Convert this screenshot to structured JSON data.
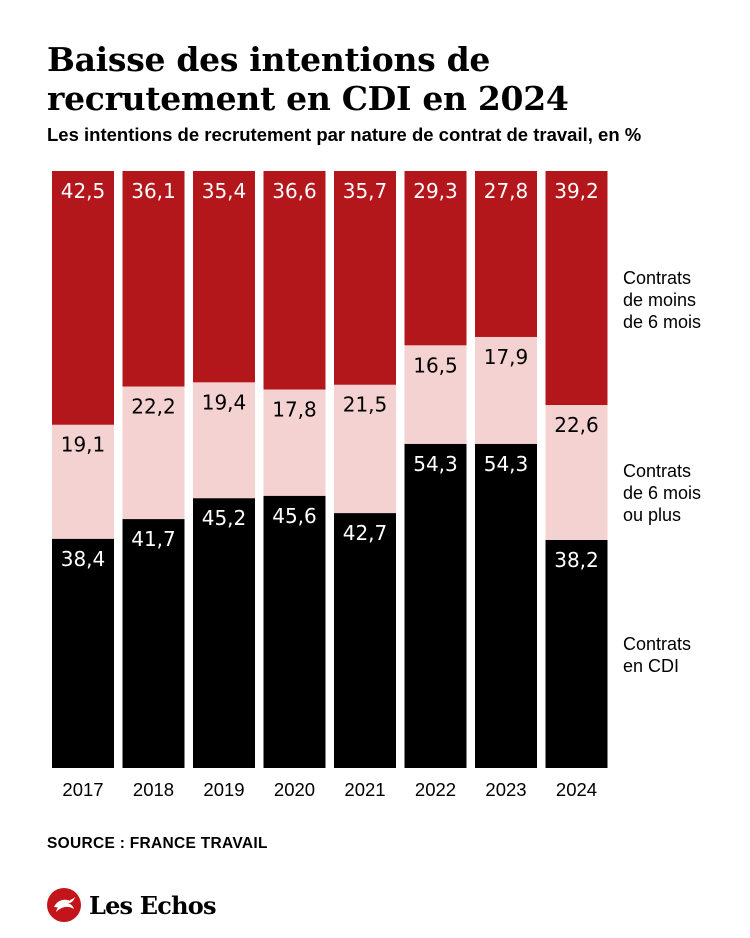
{
  "title": "Baisse des intentions de recrutement en CDI en 2024",
  "subtitle": "Les intentions de recrutement par nature de contrat de travail, en %",
  "source": "SOURCE : FRANCE TRAVAIL",
  "brand": "Les Echos",
  "colors": {
    "short": "#b3161b",
    "medium": "#f5d2d2",
    "cdi": "#000000"
  },
  "chart_data": {
    "type": "bar",
    "stacked": true,
    "categories": [
      "2017",
      "2018",
      "2019",
      "2020",
      "2021",
      "2022",
      "2023",
      "2024"
    ],
    "series": [
      {
        "key": "cdi",
        "name": "Contrats en CDI",
        "name_lines": [
          "Contrats",
          "en CDI"
        ],
        "labels": [
          "38,4",
          "41,7",
          "45,2",
          "45,6",
          "42,7",
          "54,3",
          "54,3",
          "38,2"
        ],
        "values": [
          38.4,
          41.7,
          45.2,
          45.6,
          42.7,
          54.3,
          54.3,
          38.2
        ],
        "color": "#000000"
      },
      {
        "key": "medium",
        "name": "Contrats de 6 mois ou plus",
        "name_lines": [
          "Contrats",
          "de 6 mois",
          "ou plus"
        ],
        "labels": [
          "19,1",
          "22,2",
          "19,4",
          "17,8",
          "21,5",
          "16,5",
          "17,9",
          "22,6"
        ],
        "values": [
          19.1,
          22.2,
          19.4,
          17.8,
          21.5,
          16.5,
          17.9,
          22.6
        ],
        "color": "#f5d2d2"
      },
      {
        "key": "short",
        "name": "Contrats de moins de 6 mois",
        "name_lines": [
          "Contrats",
          "de moins",
          "de 6 mois"
        ],
        "labels": [
          "42,5",
          "36,1",
          "35,4",
          "36,6",
          "35,7",
          "29,3",
          "27,8",
          "39,2"
        ],
        "values": [
          42.5,
          36.1,
          35.4,
          36.6,
          35.7,
          29.3,
          27.8,
          39.2
        ],
        "color": "#b3161b"
      }
    ],
    "ylim": [
      0,
      100
    ],
    "grid": false,
    "legend": "right"
  }
}
